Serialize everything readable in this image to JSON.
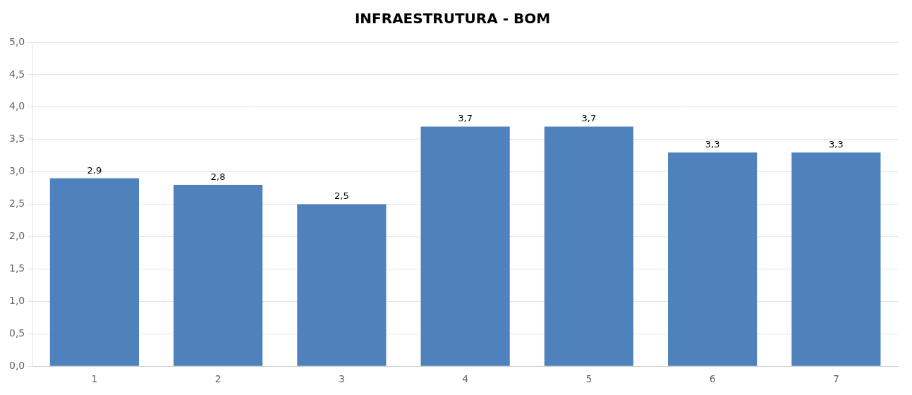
{
  "chart_data": {
    "type": "bar",
    "title": "INFRAESTRUTURA - BOM",
    "categories": [
      "1",
      "2",
      "3",
      "4",
      "5",
      "6",
      "7"
    ],
    "values": [
      2.9,
      2.8,
      2.5,
      3.7,
      3.7,
      3.3,
      3.3
    ],
    "value_labels": [
      "2,9",
      "2,8",
      "2,5",
      "3,7",
      "3,7",
      "3,3",
      "3,3"
    ],
    "color": "#4F81BD",
    "ylim": [
      0,
      5.0
    ],
    "yticks": [
      {
        "value": 0.0,
        "label": "0,0"
      },
      {
        "value": 0.5,
        "label": "0,5"
      },
      {
        "value": 1.0,
        "label": "1,0"
      },
      {
        "value": 1.5,
        "label": "1,5"
      },
      {
        "value": 2.0,
        "label": "2,0"
      },
      {
        "value": 2.5,
        "label": "2,5"
      },
      {
        "value": 3.0,
        "label": "3,0"
      },
      {
        "value": 3.5,
        "label": "3,5"
      },
      {
        "value": 4.0,
        "label": "4,0"
      },
      {
        "value": 4.5,
        "label": "4,5"
      },
      {
        "value": 5.0,
        "label": "5,0"
      }
    ],
    "grid": true,
    "data_labels": true
  }
}
